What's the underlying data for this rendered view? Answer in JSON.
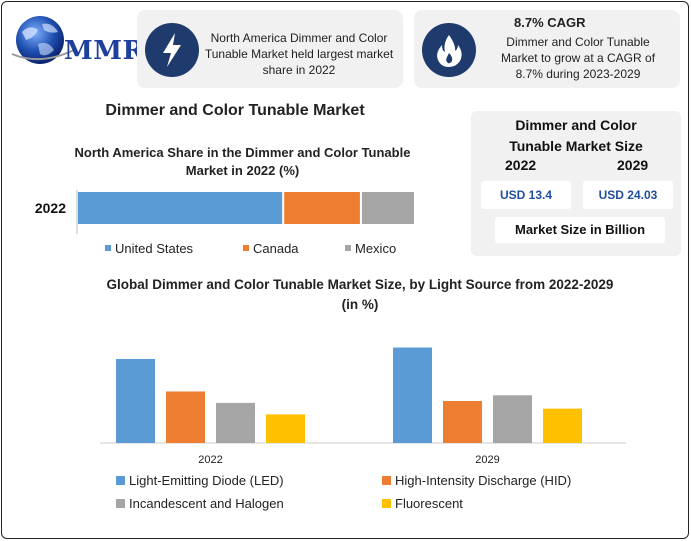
{
  "brand": {
    "name": "MMR"
  },
  "info_left": {
    "text_lines": [
      "North America Dimmer and Color",
      "Tunable Market held largest market",
      "share in 2022"
    ]
  },
  "info_right": {
    "heading": "8.7% CAGR",
    "text_lines": [
      "Dimmer and Color Tunable",
      "Market to grow at a CAGR of",
      "8.7% during 2023-2029"
    ]
  },
  "main_title": "Dimmer and Color Tunable Market",
  "market_size": {
    "title_lines": [
      "Dimmer and Color",
      "Tunable Market Size"
    ],
    "years": [
      "2022",
      "2029"
    ],
    "values": [
      "USD 13.4",
      "USD 24.03"
    ],
    "unit": "Market Size in Billion"
  },
  "colors": {
    "us": "#5b9bd5",
    "canada": "#ed7d31",
    "mexico": "#a5a5a5",
    "led": "#5b9bd5",
    "hid": "#ed7d31",
    "halogen": "#a5a5a5",
    "fluorescent": "#ffc000",
    "icon_bg": "#1f3b6e"
  },
  "chart_data": [
    {
      "type": "bar",
      "orientation": "horizontal-stacked",
      "title": "North America Share in the Dimmer and Color Tunable Market in 2022 (%)",
      "categories": [
        "2022"
      ],
      "series": [
        {
          "name": "United States",
          "values": [
            61
          ]
        },
        {
          "name": "Canada",
          "values": [
            23
          ]
        },
        {
          "name": "Mexico",
          "values": [
            16
          ]
        }
      ],
      "xlim": [
        0,
        100
      ],
      "legend": "bottom",
      "grid": false
    },
    {
      "type": "bar",
      "title": "Global Dimmer and Color Tunable Market Size, by Light Source from 2022-2029  (in %)",
      "categories": [
        "2022",
        "2029"
      ],
      "series": [
        {
          "name": "Light-Emitting Diode (LED)",
          "values": [
            44,
            50
          ]
        },
        {
          "name": "High-Intensity Discharge (HID)",
          "values": [
            27,
            22
          ]
        },
        {
          "name": "Incandescent and Halogen",
          "values": [
            21,
            25
          ]
        },
        {
          "name": "Fluorescent",
          "values": [
            15,
            18
          ]
        }
      ],
      "ylim": [
        0,
        55
      ],
      "legend": "bottom",
      "grid": false
    }
  ]
}
